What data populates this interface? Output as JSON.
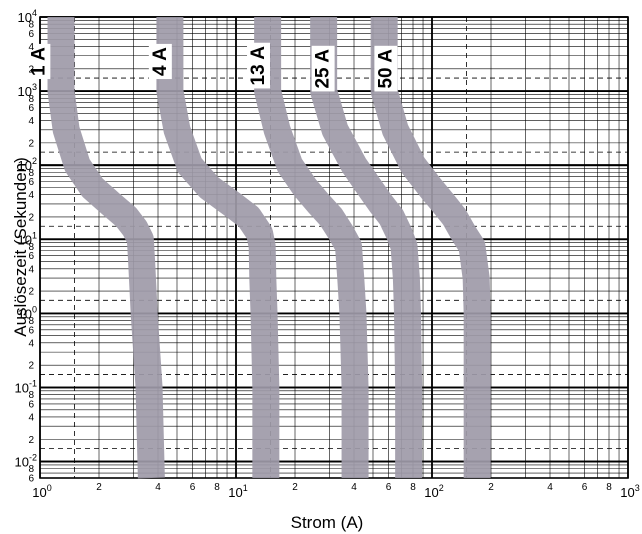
{
  "chart_data": {
    "type": "line",
    "xlabel": "Strom (A)",
    "ylabel": "Auslösezeit (Sekunden)",
    "xscale": "log",
    "yscale": "log",
    "xlim": [
      1,
      1000
    ],
    "ylim": [
      0.006,
      10000
    ],
    "grid": true,
    "x_major_ticks": [
      {
        "v": 1,
        "base": "10",
        "exp": "0"
      },
      {
        "v": 10,
        "base": "10",
        "exp": "1"
      },
      {
        "v": 100,
        "base": "10",
        "exp": "2"
      },
      {
        "v": 1000,
        "base": "10",
        "exp": "3"
      }
    ],
    "x_minor_ticks": [
      {
        "v": 2,
        "label": "2"
      },
      {
        "v": 4,
        "label": "4"
      },
      {
        "v": 6,
        "label": "6"
      },
      {
        "v": 8,
        "label": "8"
      },
      {
        "v": 20,
        "label": "2"
      },
      {
        "v": 40,
        "label": "4"
      },
      {
        "v": 60,
        "label": "6"
      },
      {
        "v": 80,
        "label": "8"
      },
      {
        "v": 200,
        "label": "2"
      },
      {
        "v": 400,
        "label": "4"
      },
      {
        "v": 600,
        "label": "6"
      },
      {
        "v": 800,
        "label": "8"
      }
    ],
    "y_major_ticks": [
      {
        "v": 10000,
        "base": "10",
        "exp": "4"
      },
      {
        "v": 1000,
        "base": "10",
        "exp": "3"
      },
      {
        "v": 100,
        "base": "10",
        "exp": "2"
      },
      {
        "v": 10,
        "base": "10",
        "exp": "1"
      },
      {
        "v": 1,
        "base": "10",
        "exp": "0"
      },
      {
        "v": 0.1,
        "base": "10",
        "exp": "-1"
      },
      {
        "v": 0.01,
        "base": "10",
        "exp": "-2"
      }
    ],
    "y_minor_ticks": [
      {
        "v": 8000,
        "label": "8"
      },
      {
        "v": 6000,
        "label": "6"
      },
      {
        "v": 4000,
        "label": "4"
      },
      {
        "v": 2000,
        "label": "2"
      },
      {
        "v": 800,
        "label": "8"
      },
      {
        "v": 600,
        "label": "6"
      },
      {
        "v": 400,
        "label": "4"
      },
      {
        "v": 200,
        "label": "2"
      },
      {
        "v": 80,
        "label": "8"
      },
      {
        "v": 60,
        "label": "6"
      },
      {
        "v": 40,
        "label": "4"
      },
      {
        "v": 20,
        "label": "2"
      },
      {
        "v": 8,
        "label": "8"
      },
      {
        "v": 6,
        "label": "6"
      },
      {
        "v": 4,
        "label": "4"
      },
      {
        "v": 2,
        "label": "2"
      },
      {
        "v": 0.8,
        "label": "8"
      },
      {
        "v": 0.6,
        "label": "6"
      },
      {
        "v": 0.4,
        "label": "4"
      },
      {
        "v": 0.2,
        "label": "2"
      },
      {
        "v": 0.08,
        "label": "8"
      },
      {
        "v": 0.06,
        "label": "6"
      },
      {
        "v": 0.04,
        "label": "4"
      },
      {
        "v": 0.02,
        "label": "2"
      },
      {
        "v": 0.008,
        "label": "8"
      },
      {
        "v": 0.006,
        "label": "6"
      }
    ],
    "dashed_x": [
      1.5,
      15,
      150
    ],
    "dashed_y": [
      1500,
      150,
      15,
      1.5,
      0.15,
      0.015
    ],
    "band_color": "#9e9aa8",
    "series": [
      {
        "name": "1 A",
        "points": [
          [
            1.28,
            10000
          ],
          [
            1.28,
            1000
          ],
          [
            1.36,
            300
          ],
          [
            1.55,
            100
          ],
          [
            1.85,
            50
          ],
          [
            2.3,
            30
          ],
          [
            2.75,
            20
          ],
          [
            3.05,
            14
          ],
          [
            3.25,
            10
          ],
          [
            3.3,
            5
          ],
          [
            3.4,
            1
          ],
          [
            3.6,
            0.1
          ],
          [
            3.7,
            0.006
          ]
        ]
      },
      {
        "name": "4 A",
        "points": [
          [
            4.6,
            10000
          ],
          [
            4.6,
            1000
          ],
          [
            5.0,
            300
          ],
          [
            5.8,
            100
          ],
          [
            7.3,
            50
          ],
          [
            9.5,
            30
          ],
          [
            11.6,
            20
          ],
          [
            13.2,
            12
          ],
          [
            13.6,
            8
          ],
          [
            13.7,
            3
          ],
          [
            13.9,
            1
          ],
          [
            14.2,
            0.1
          ],
          [
            14.2,
            0.006
          ]
        ]
      },
      {
        "name": "13 A",
        "points": [
          [
            14.5,
            10000
          ],
          [
            14.5,
            1000
          ],
          [
            16.2,
            300
          ],
          [
            18.8,
            100
          ],
          [
            22.5,
            50
          ],
          [
            26.5,
            30
          ],
          [
            30.5,
            20
          ],
          [
            34.5,
            12
          ],
          [
            37.5,
            8
          ],
          [
            38.5,
            3
          ],
          [
            39.5,
            1
          ],
          [
            40.5,
            0.1
          ],
          [
            40.5,
            0.006
          ]
        ]
      },
      {
        "name": "25 A",
        "points": [
          [
            28,
            10000
          ],
          [
            28,
            1000
          ],
          [
            32,
            300
          ],
          [
            40,
            100
          ],
          [
            48,
            50
          ],
          [
            55,
            30
          ],
          [
            62,
            20
          ],
          [
            68,
            12
          ],
          [
            72,
            8
          ],
          [
            74,
            3
          ],
          [
            75,
            1
          ],
          [
            76,
            0.1
          ],
          [
            76,
            0.006
          ]
        ]
      },
      {
        "name": "50 A",
        "points": [
          [
            57,
            10000
          ],
          [
            57,
            1000
          ],
          [
            65,
            300
          ],
          [
            80,
            100
          ],
          [
            98,
            50
          ],
          [
            115,
            30
          ],
          [
            130,
            20
          ],
          [
            145,
            12
          ],
          [
            160,
            8
          ],
          [
            168,
            3
          ],
          [
            170,
            1
          ],
          [
            170,
            0.1
          ],
          [
            170,
            0.006
          ]
        ]
      }
    ],
    "labels": [
      {
        "text": "1 A",
        "x": 0.78,
        "y": 2500
      },
      {
        "text": "4 A",
        "x": 3.25,
        "y": 2500
      },
      {
        "text": "13 A",
        "x": 10.3,
        "y": 2200
      },
      {
        "text": "25 A",
        "x": 22,
        "y": 2000
      },
      {
        "text": "50 A",
        "x": 46,
        "y": 2000
      }
    ]
  }
}
